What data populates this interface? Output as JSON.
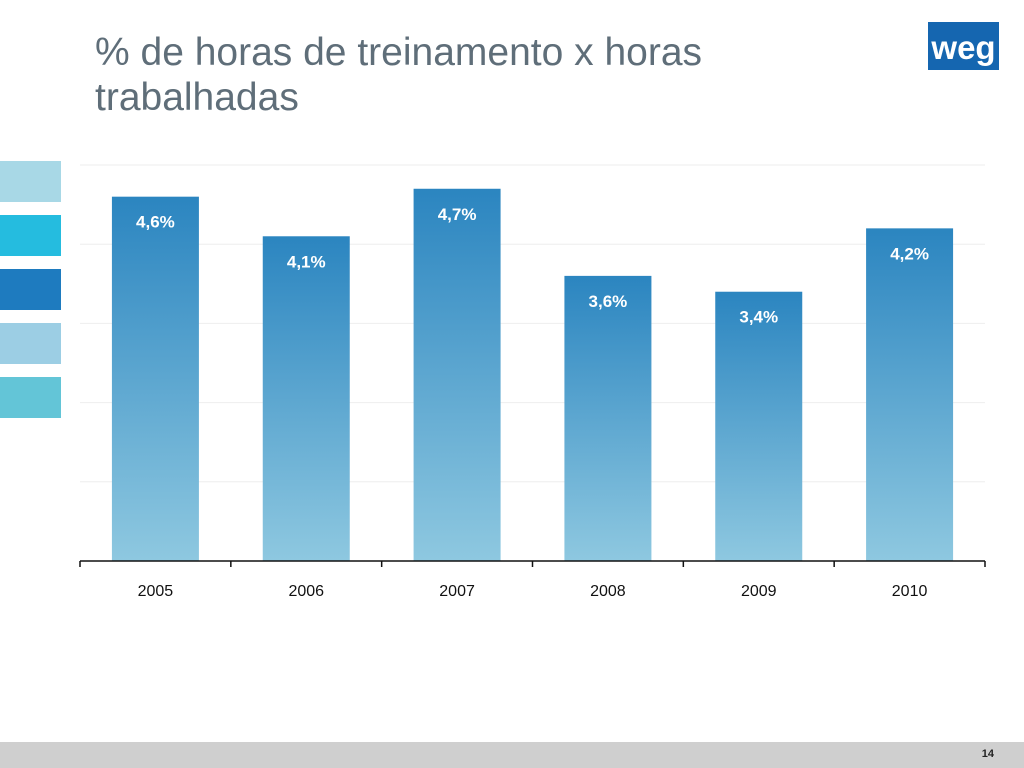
{
  "slide": {
    "title": "% de horas de treinamento x horas trabalhadas",
    "page_number": "14",
    "logo_text": "weg"
  },
  "colors": {
    "title_text": "#5f6e79",
    "bar_top": "#2b85c0",
    "bar_bottom": "#8ec8e0",
    "logo_blue": "#1566b0",
    "footer": "#cfcfcf",
    "side_stripes": [
      "#a8d8e6",
      "#25bcdf",
      "#1e7bbf",
      "#9ccee4",
      "#63c5d7"
    ]
  },
  "icons": {
    "logo": "weg-logo"
  },
  "chart_data": {
    "type": "bar",
    "categories": [
      "2005",
      "2006",
      "2007",
      "2008",
      "2009",
      "2010"
    ],
    "values": [
      4.6,
      4.1,
      4.7,
      3.6,
      3.4,
      4.2
    ],
    "data_labels": [
      "4,6%",
      "4,1%",
      "4,7%",
      "3,6%",
      "3,4%",
      "4,2%"
    ],
    "ylim": [
      0,
      5
    ],
    "grid": true,
    "legend": "none",
    "xlabel": "",
    "ylabel": ""
  }
}
